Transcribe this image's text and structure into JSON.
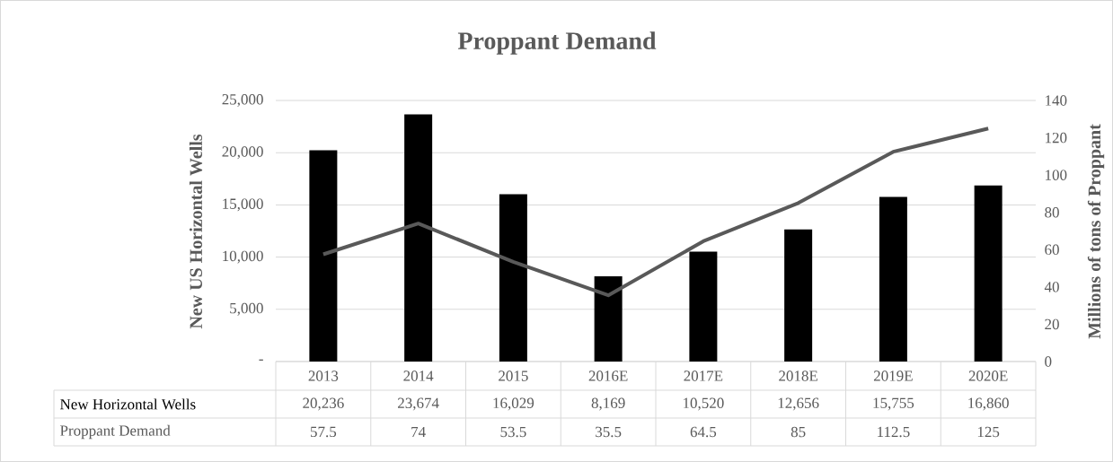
{
  "chart_data": {
    "type": "bar",
    "title": "Proppant Demand",
    "ylabel": "New US Horizontal Wells",
    "y2label": "Millions of tons of Proppant",
    "categories": [
      "2013",
      "2014",
      "2015",
      "2016E",
      "2017E",
      "2018E",
      "2019E",
      "2020E"
    ],
    "series": [
      {
        "name": "New Horizontal Wells",
        "color": "#000000",
        "values": [
          20236,
          23674,
          16029,
          8169,
          10520,
          12656,
          15755,
          16860
        ],
        "value_labels": [
          "20,236",
          "23,674",
          "16,029",
          "8,169",
          "10,520",
          "12,656",
          "15,755",
          "16,860"
        ]
      },
      {
        "name": "Proppant Demand",
        "type": "line",
        "axis": "y2",
        "color": "#595959",
        "values": [
          57.5,
          74,
          53.5,
          35.5,
          64.5,
          85,
          112.5,
          125
        ],
        "value_labels": [
          "57.5",
          "74",
          "53.5",
          "35.5",
          "64.5",
          "85",
          "112.5",
          "125"
        ]
      }
    ],
    "ylim": [
      0,
      25000
    ],
    "yticks": [
      {
        "value": 0,
        "label": "-"
      },
      {
        "value": 5000,
        "label": "5,000"
      },
      {
        "value": 10000,
        "label": "10,000"
      },
      {
        "value": 15000,
        "label": "15,000"
      },
      {
        "value": 20000,
        "label": "20,000"
      },
      {
        "value": 25000,
        "label": "25,000"
      }
    ],
    "y2lim": [
      0,
      140
    ],
    "y2ticks": [
      0,
      20,
      40,
      60,
      80,
      100,
      120,
      140
    ],
    "grid": "y"
  }
}
